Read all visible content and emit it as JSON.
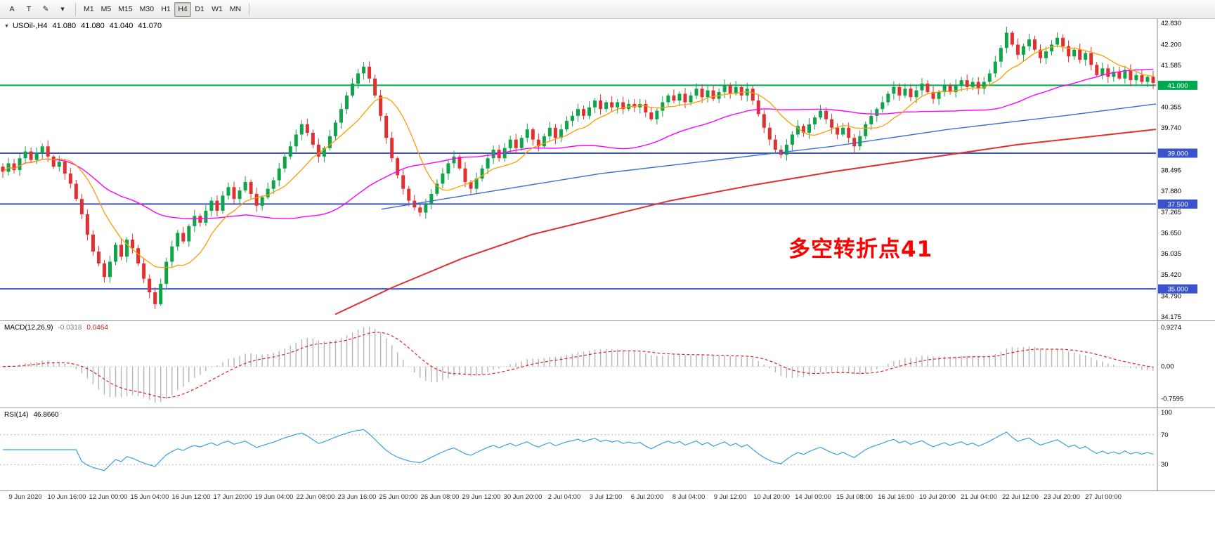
{
  "toolbar": {
    "tools": [
      {
        "name": "text-label-tool",
        "glyph": "A"
      },
      {
        "name": "text-tool",
        "glyph": "T"
      },
      {
        "name": "drawing-tool",
        "glyph": "✎"
      },
      {
        "name": "drawing-dropdown",
        "glyph": "▾"
      }
    ],
    "timeframes": [
      {
        "label": "M1",
        "active": false
      },
      {
        "label": "M5",
        "active": false
      },
      {
        "label": "M15",
        "active": false
      },
      {
        "label": "M30",
        "active": false
      },
      {
        "label": "H1",
        "active": false
      },
      {
        "label": "H4",
        "active": true
      },
      {
        "label": "D1",
        "active": false
      },
      {
        "label": "W1",
        "active": false
      },
      {
        "label": "MN",
        "active": false
      }
    ]
  },
  "chart": {
    "header": {
      "dropdown_icon": "▼",
      "symbol": "USOil-,H4",
      "open": "41.080",
      "high": "41.080",
      "low": "41.040",
      "close": "41.070"
    },
    "annotation": {
      "text": "多空转折点41",
      "color": "#ff0000"
    },
    "price_axis": {
      "ticks": [
        "42.830",
        "42.200",
        "41.585",
        "40.355",
        "39.740",
        "38.495",
        "37.880",
        "37.265",
        "36.650",
        "36.035",
        "35.420",
        "34.790",
        "34.175"
      ]
    },
    "time_axis": [
      "9 Jun 2020",
      "10 Jun 16:00",
      "12 Jun 00:00",
      "15 Jun 04:00",
      "16 Jun 12:00",
      "17 Jun 20:00",
      "19 Jun 04:00",
      "22 Jun 08:00",
      "23 Jun 16:00",
      "25 Jun 00:00",
      "26 Jun 08:00",
      "29 Jun 12:00",
      "30 Jun 20:00",
      "2 Jul 04:00",
      "3 Jul 12:00",
      "6 Jul 20:00",
      "8 Jul 04:00",
      "9 Jul 12:00",
      "10 Jul 20:00",
      "14 Jul 00:00",
      "15 Jul 08:00",
      "16 Jul 16:00",
      "19 Jul 20:00",
      "21 Jul 04:00",
      "22 Jul 12:00",
      "23 Jul 20:00",
      "27 Jul 00:00"
    ]
  },
  "macd": {
    "title": "MACD(12,26,9)",
    "main_value": "-0.0318",
    "signal_value": "0.0464",
    "fast": 12,
    "slow": 26,
    "signal": 9,
    "axis": [
      "0.9274",
      "0.00",
      "-0.7595"
    ],
    "histogram_color": "#b6b6b6",
    "signal_color": "#e02020"
  },
  "rsi": {
    "title": "RSI(14)",
    "value": "46.8660",
    "period": 14,
    "axis": [
      "100",
      "70",
      "30"
    ],
    "levels": [
      70,
      30
    ],
    "line_color": "#3aa0dc"
  },
  "chart_data": {
    "type": "candlestick",
    "symbol": "USOil-",
    "timeframe": "H4",
    "title": "USOil-,H4 41.080 41.080 41.040 41.070",
    "price_min": 34.175,
    "price_max": 42.83,
    "up_color": "#0fa44a",
    "down_color": "#e03131",
    "closes": [
      38.45,
      38.7,
      38.5,
      38.85,
      39.05,
      38.8,
      39.0,
      39.2,
      38.9,
      38.6,
      38.75,
      38.4,
      38.1,
      37.65,
      37.2,
      36.6,
      36.1,
      35.75,
      35.35,
      35.8,
      36.3,
      35.95,
      36.45,
      36.2,
      35.75,
      35.3,
      34.9,
      34.55,
      35.15,
      35.8,
      36.25,
      36.65,
      36.4,
      36.85,
      37.15,
      36.95,
      37.3,
      37.6,
      37.3,
      37.75,
      38.0,
      37.65,
      37.9,
      38.15,
      37.8,
      37.45,
      37.7,
      37.95,
      38.2,
      38.55,
      38.9,
      39.2,
      39.55,
      39.85,
      39.6,
      39.25,
      38.9,
      39.15,
      39.5,
      39.9,
      40.3,
      40.7,
      41.05,
      41.35,
      41.55,
      41.2,
      40.7,
      40.1,
      39.45,
      38.85,
      38.35,
      37.95,
      37.6,
      37.4,
      37.25,
      37.5,
      37.8,
      38.1,
      38.4,
      38.7,
      38.9,
      38.55,
      38.15,
      37.95,
      38.25,
      38.55,
      38.85,
      39.1,
      38.85,
      39.15,
      39.4,
      39.15,
      39.45,
      39.7,
      39.4,
      39.2,
      39.5,
      39.75,
      39.45,
      39.7,
      39.95,
      40.1,
      40.3,
      40.1,
      40.35,
      40.55,
      40.3,
      40.5,
      40.35,
      40.5,
      40.3,
      40.45,
      40.35,
      40.45,
      40.2,
      40.0,
      40.25,
      40.5,
      40.7,
      40.55,
      40.75,
      40.5,
      40.7,
      40.9,
      40.65,
      40.85,
      40.6,
      40.8,
      41.0,
      40.75,
      40.95,
      40.7,
      40.9,
      40.55,
      40.15,
      39.75,
      39.4,
      39.1,
      38.95,
      39.25,
      39.55,
      39.8,
      39.6,
      39.85,
      40.05,
      40.25,
      40.0,
      39.75,
      39.55,
      39.75,
      39.45,
      39.2,
      39.5,
      39.85,
      40.1,
      40.3,
      40.5,
      40.75,
      40.95,
      40.7,
      40.9,
      40.65,
      40.85,
      41.05,
      40.8,
      40.6,
      40.8,
      41.0,
      40.8,
      41.0,
      41.15,
      40.95,
      41.1,
      40.9,
      41.1,
      41.35,
      41.7,
      42.1,
      42.55,
      42.2,
      41.9,
      42.15,
      42.35,
      42.05,
      41.8,
      42.0,
      42.2,
      42.4,
      42.15,
      41.85,
      42.05,
      41.75,
      41.95,
      41.6,
      41.3,
      41.5,
      41.25,
      41.4,
      41.2,
      41.45,
      41.15,
      41.3,
      41.1,
      41.25,
      41.07
    ],
    "hlines": [
      {
        "price": 41.0,
        "label": "41.000",
        "color": "#00a84f"
      },
      {
        "price": 39.0,
        "label": "39.000",
        "color": "#3a52cc"
      },
      {
        "price": 37.5,
        "label": "37.500",
        "color": "#3a52cc"
      },
      {
        "price": 35.0,
        "label": "35.000",
        "color": "#3a52cc"
      }
    ],
    "ma_computed": [
      {
        "name": "ma-medium-magenta",
        "period": 44,
        "color": "#ff00ff",
        "width": 1.4
      },
      {
        "name": "ma-fast-orange",
        "period": 10,
        "color": "#ff9c00",
        "width": 1.3
      }
    ],
    "ma_anchor_lines": [
      {
        "name": "ma-long-red",
        "color": "#e03030",
        "width": 2,
        "points": [
          [
            0.29,
            34.25
          ],
          [
            0.34,
            35.05
          ],
          [
            0.4,
            35.9
          ],
          [
            0.46,
            36.6
          ],
          [
            0.52,
            37.1
          ],
          [
            0.58,
            37.6
          ],
          [
            0.65,
            38.05
          ],
          [
            0.72,
            38.45
          ],
          [
            0.8,
            38.85
          ],
          [
            0.88,
            39.25
          ],
          [
            1.0,
            39.7
          ]
        ]
      },
      {
        "name": "ma-slow-blue",
        "color": "#3b6fd6",
        "width": 1.4,
        "points": [
          [
            0.33,
            37.35
          ],
          [
            0.42,
            37.85
          ],
          [
            0.52,
            38.4
          ],
          [
            0.62,
            38.8
          ],
          [
            0.72,
            39.2
          ],
          [
            0.82,
            39.7
          ],
          [
            0.92,
            40.1
          ],
          [
            1.0,
            40.45
          ]
        ]
      }
    ]
  }
}
